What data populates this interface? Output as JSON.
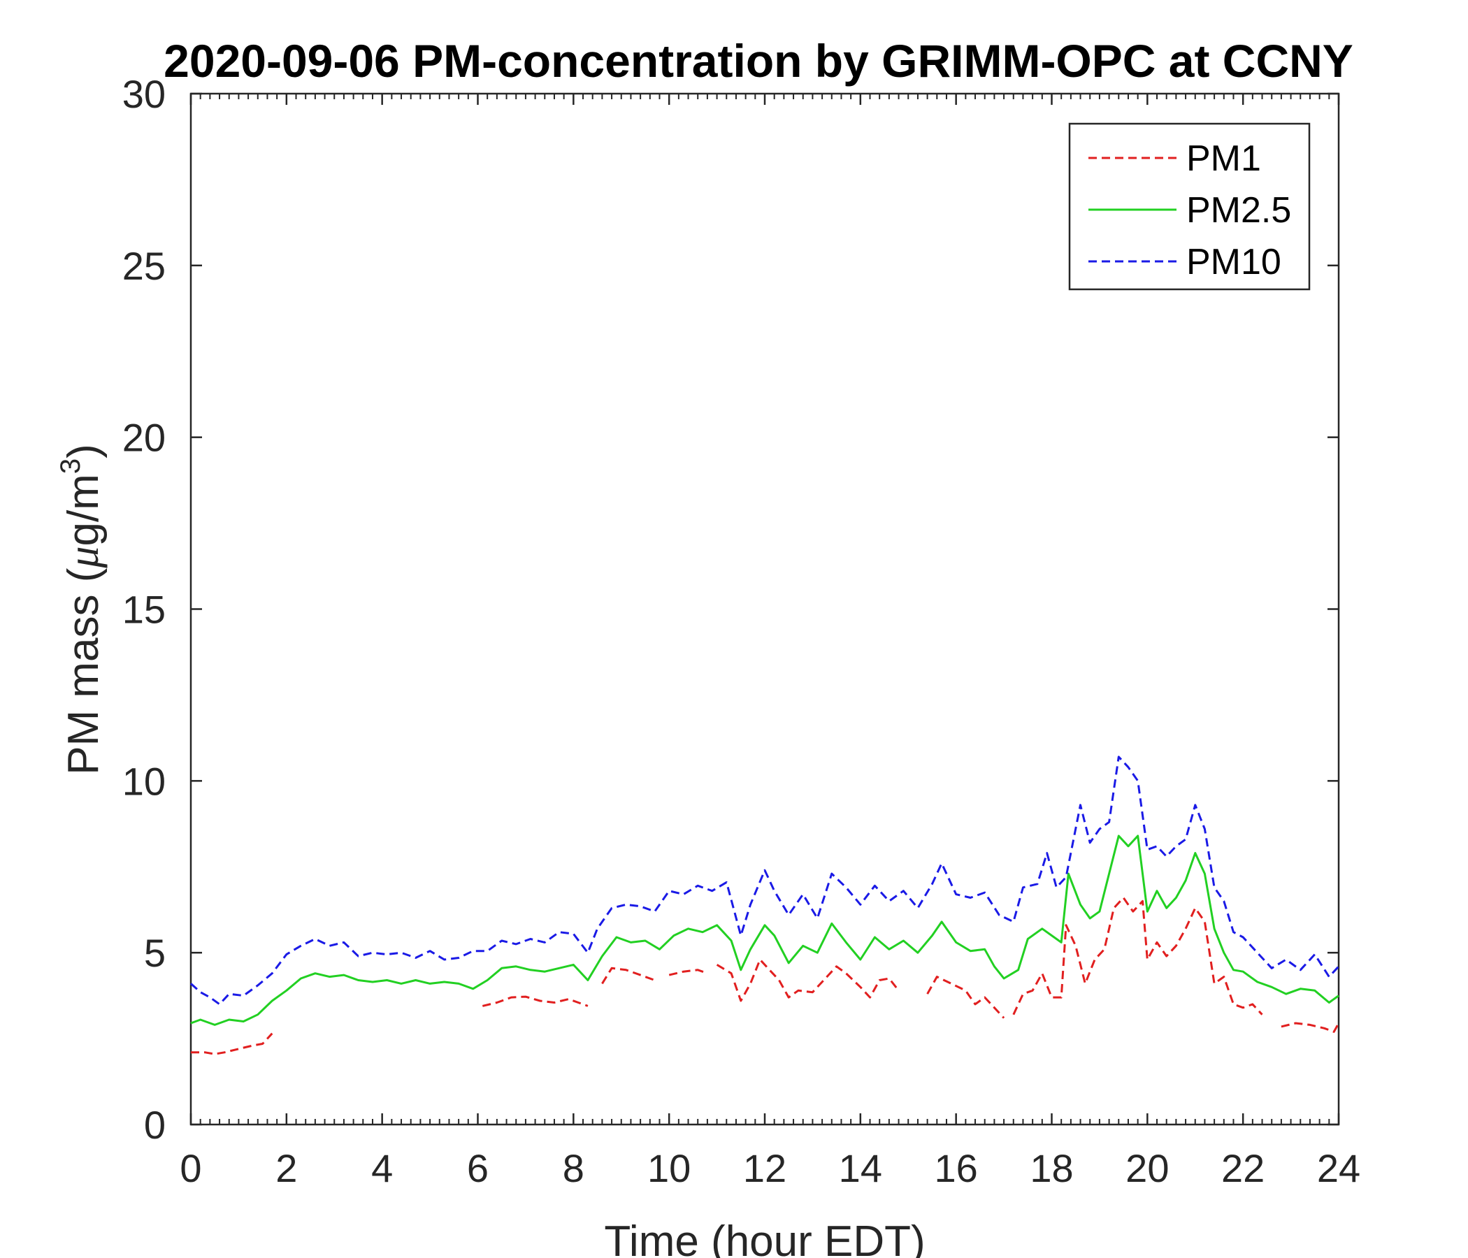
{
  "chart_data": {
    "type": "line",
    "title": "2020-09-06 PM-concentration by GRIMM-OPC at CCNY",
    "xlabel": "Time (hour EDT)",
    "ylabel_main": "PM mass (",
    "ylabel_mu": "μ",
    "ylabel_unit": "g/m",
    "ylabel_sup": "3",
    "ylabel_close": ")",
    "xlim": [
      0,
      24
    ],
    "ylim": [
      0,
      30
    ],
    "xticks": [
      0,
      2,
      4,
      6,
      8,
      10,
      12,
      14,
      16,
      18,
      20,
      22,
      24
    ],
    "xtick_labels": [
      "0",
      "2",
      "4",
      "6",
      "8",
      "10",
      "12",
      "14",
      "16",
      "18",
      "20",
      "22",
      "24"
    ],
    "yticks": [
      0,
      5,
      10,
      15,
      20,
      25,
      30
    ],
    "ytick_labels": [
      "0",
      "5",
      "10",
      "15",
      "20",
      "25",
      "30"
    ],
    "grid": false,
    "legend_position": "top-right",
    "series": [
      {
        "name": "PM1",
        "color": "#e11f1f",
        "style": "dashed",
        "segments": [
          [
            [
              0,
              2.1
            ],
            [
              0.3,
              2.1
            ],
            [
              0.5,
              2.05
            ],
            [
              0.7,
              2.1
            ],
            [
              1.0,
              2.2
            ],
            [
              1.3,
              2.3
            ],
            [
              1.5,
              2.35
            ],
            [
              1.7,
              2.65
            ]
          ],
          [
            [
              6.1,
              3.45
            ],
            [
              6.4,
              3.55
            ],
            [
              6.7,
              3.7
            ],
            [
              7.0,
              3.72
            ],
            [
              7.3,
              3.6
            ],
            [
              7.6,
              3.55
            ],
            [
              7.9,
              3.65
            ],
            [
              8.1,
              3.55
            ],
            [
              8.3,
              3.45
            ]
          ],
          [
            [
              8.6,
              4.1
            ],
            [
              8.8,
              4.55
            ],
            [
              9.1,
              4.5
            ],
            [
              9.4,
              4.35
            ],
            [
              9.7,
              4.2
            ]
          ],
          [
            [
              10.0,
              4.35
            ],
            [
              10.3,
              4.45
            ],
            [
              10.6,
              4.5
            ],
            [
              10.8,
              4.4
            ]
          ],
          [
            [
              11.0,
              4.65
            ],
            [
              11.3,
              4.4
            ],
            [
              11.5,
              3.6
            ],
            [
              11.7,
              4.1
            ],
            [
              11.9,
              4.8
            ],
            [
              12.1,
              4.5
            ],
            [
              12.3,
              4.2
            ],
            [
              12.5,
              3.7
            ],
            [
              12.7,
              3.9
            ],
            [
              13.0,
              3.85
            ],
            [
              13.3,
              4.3
            ],
            [
              13.5,
              4.6
            ],
            [
              13.7,
              4.4
            ],
            [
              14.0,
              4.0
            ],
            [
              14.2,
              3.7
            ],
            [
              14.4,
              4.2
            ],
            [
              14.6,
              4.25
            ],
            [
              14.8,
              3.9
            ]
          ],
          [
            [
              15.4,
              3.8
            ],
            [
              15.6,
              4.3
            ],
            [
              15.9,
              4.1
            ],
            [
              16.2,
              3.9
            ],
            [
              16.4,
              3.5
            ],
            [
              16.6,
              3.7
            ],
            [
              16.8,
              3.4
            ],
            [
              17.0,
              3.1
            ]
          ],
          [
            [
              17.2,
              3.2
            ],
            [
              17.4,
              3.8
            ],
            [
              17.6,
              3.9
            ],
            [
              17.8,
              4.4
            ],
            [
              18.0,
              3.7
            ],
            [
              18.2,
              3.7
            ],
            [
              18.3,
              5.8
            ],
            [
              18.5,
              5.2
            ],
            [
              18.7,
              4.1
            ],
            [
              18.9,
              4.8
            ],
            [
              19.1,
              5.1
            ],
            [
              19.3,
              6.3
            ],
            [
              19.5,
              6.6
            ],
            [
              19.7,
              6.2
            ],
            [
              19.9,
              6.5
            ],
            [
              20.0,
              4.8
            ],
            [
              20.2,
              5.3
            ],
            [
              20.4,
              4.9
            ],
            [
              20.6,
              5.2
            ],
            [
              20.8,
              5.7
            ],
            [
              21.0,
              6.3
            ],
            [
              21.2,
              5.9
            ],
            [
              21.4,
              4.1
            ],
            [
              21.6,
              4.3
            ],
            [
              21.8,
              3.5
            ],
            [
              22.0,
              3.4
            ],
            [
              22.2,
              3.5
            ],
            [
              22.4,
              3.2
            ]
          ],
          [
            [
              22.8,
              2.85
            ],
            [
              23.1,
              2.95
            ],
            [
              23.4,
              2.9
            ],
            [
              23.7,
              2.8
            ],
            [
              23.9,
              2.7
            ],
            [
              24.0,
              2.95
            ]
          ]
        ]
      },
      {
        "name": "PM2.5",
        "color": "#22d022",
        "style": "solid",
        "segments": [
          [
            [
              0,
              2.95
            ],
            [
              0.2,
              3.05
            ],
            [
              0.5,
              2.9
            ],
            [
              0.8,
              3.05
            ],
            [
              1.1,
              3.0
            ],
            [
              1.4,
              3.2
            ],
            [
              1.7,
              3.6
            ],
            [
              2.0,
              3.9
            ],
            [
              2.3,
              4.25
            ],
            [
              2.6,
              4.4
            ],
            [
              2.9,
              4.3
            ],
            [
              3.2,
              4.35
            ],
            [
              3.5,
              4.2
            ],
            [
              3.8,
              4.15
            ],
            [
              4.1,
              4.2
            ],
            [
              4.4,
              4.1
            ],
            [
              4.7,
              4.2
            ],
            [
              5.0,
              4.1
            ],
            [
              5.3,
              4.15
            ],
            [
              5.6,
              4.1
            ],
            [
              5.9,
              3.95
            ],
            [
              6.2,
              4.2
            ],
            [
              6.5,
              4.55
            ],
            [
              6.8,
              4.6
            ],
            [
              7.1,
              4.5
            ],
            [
              7.4,
              4.45
            ],
            [
              7.7,
              4.55
            ],
            [
              8.0,
              4.65
            ],
            [
              8.3,
              4.2
            ],
            [
              8.6,
              4.9
            ],
            [
              8.9,
              5.45
            ],
            [
              9.2,
              5.3
            ],
            [
              9.5,
              5.35
            ],
            [
              9.8,
              5.1
            ],
            [
              10.1,
              5.5
            ],
            [
              10.4,
              5.7
            ],
            [
              10.7,
              5.6
            ],
            [
              11.0,
              5.8
            ],
            [
              11.3,
              5.35
            ],
            [
              11.5,
              4.5
            ],
            [
              11.7,
              5.1
            ],
            [
              12.0,
              5.8
            ],
            [
              12.2,
              5.5
            ],
            [
              12.5,
              4.7
            ],
            [
              12.8,
              5.2
            ],
            [
              13.1,
              5.0
            ],
            [
              13.4,
              5.85
            ],
            [
              13.7,
              5.3
            ],
            [
              14.0,
              4.8
            ],
            [
              14.3,
              5.45
            ],
            [
              14.6,
              5.1
            ],
            [
              14.9,
              5.35
            ],
            [
              15.2,
              5.0
            ],
            [
              15.5,
              5.5
            ],
            [
              15.7,
              5.9
            ],
            [
              16.0,
              5.3
            ],
            [
              16.3,
              5.05
            ],
            [
              16.6,
              5.1
            ],
            [
              16.8,
              4.6
            ],
            [
              17.0,
              4.25
            ],
            [
              17.3,
              4.5
            ],
            [
              17.5,
              5.4
            ],
            [
              17.8,
              5.7
            ],
            [
              18.0,
              5.5
            ],
            [
              18.2,
              5.3
            ],
            [
              18.35,
              7.3
            ],
            [
              18.6,
              6.4
            ],
            [
              18.8,
              6.0
            ],
            [
              19.0,
              6.2
            ],
            [
              19.2,
              7.3
            ],
            [
              19.4,
              8.4
            ],
            [
              19.6,
              8.1
            ],
            [
              19.8,
              8.4
            ],
            [
              20.0,
              6.2
            ],
            [
              20.2,
              6.8
            ],
            [
              20.4,
              6.3
            ],
            [
              20.6,
              6.6
            ],
            [
              20.8,
              7.1
            ],
            [
              21.0,
              7.9
            ],
            [
              21.2,
              7.3
            ],
            [
              21.4,
              5.7
            ],
            [
              21.6,
              5.0
            ],
            [
              21.8,
              4.5
            ],
            [
              22.0,
              4.45
            ],
            [
              22.3,
              4.15
            ],
            [
              22.6,
              4.0
            ],
            [
              22.9,
              3.8
            ],
            [
              23.2,
              3.95
            ],
            [
              23.5,
              3.9
            ],
            [
              23.8,
              3.55
            ],
            [
              24.0,
              3.75
            ]
          ]
        ]
      },
      {
        "name": "PM10",
        "color": "#1a1ae6",
        "style": "dashed",
        "segments": [
          [
            [
              0,
              4.1
            ],
            [
              0.2,
              3.85
            ],
            [
              0.4,
              3.7
            ],
            [
              0.6,
              3.5
            ],
            [
              0.8,
              3.8
            ],
            [
              1.1,
              3.75
            ],
            [
              1.4,
              4.05
            ],
            [
              1.7,
              4.4
            ],
            [
              2.0,
              4.95
            ],
            [
              2.3,
              5.2
            ],
            [
              2.6,
              5.4
            ],
            [
              2.9,
              5.2
            ],
            [
              3.2,
              5.3
            ],
            [
              3.5,
              4.9
            ],
            [
              3.8,
              5.0
            ],
            [
              4.1,
              4.95
            ],
            [
              4.4,
              5.0
            ],
            [
              4.7,
              4.85
            ],
            [
              5.0,
              5.05
            ],
            [
              5.3,
              4.8
            ],
            [
              5.6,
              4.85
            ],
            [
              5.9,
              5.05
            ],
            [
              6.2,
              5.05
            ],
            [
              6.5,
              5.35
            ],
            [
              6.8,
              5.25
            ],
            [
              7.1,
              5.4
            ],
            [
              7.4,
              5.3
            ],
            [
              7.7,
              5.6
            ],
            [
              8.0,
              5.55
            ],
            [
              8.3,
              5.0
            ],
            [
              8.5,
              5.7
            ],
            [
              8.8,
              6.3
            ],
            [
              9.1,
              6.4
            ],
            [
              9.4,
              6.35
            ],
            [
              9.7,
              6.2
            ],
            [
              10.0,
              6.8
            ],
            [
              10.3,
              6.7
            ],
            [
              10.6,
              6.95
            ],
            [
              10.9,
              6.8
            ],
            [
              11.2,
              7.05
            ],
            [
              11.5,
              5.5
            ],
            [
              11.7,
              6.4
            ],
            [
              12.0,
              7.4
            ],
            [
              12.2,
              6.8
            ],
            [
              12.5,
              6.1
            ],
            [
              12.8,
              6.7
            ],
            [
              13.1,
              6.0
            ],
            [
              13.4,
              7.3
            ],
            [
              13.7,
              6.9
            ],
            [
              14.0,
              6.4
            ],
            [
              14.3,
              6.95
            ],
            [
              14.6,
              6.5
            ],
            [
              14.9,
              6.8
            ],
            [
              15.2,
              6.3
            ],
            [
              15.5,
              7.0
            ],
            [
              15.7,
              7.6
            ],
            [
              16.0,
              6.7
            ],
            [
              16.3,
              6.6
            ],
            [
              16.6,
              6.75
            ],
            [
              16.9,
              6.1
            ],
            [
              17.2,
              5.9
            ],
            [
              17.4,
              6.9
            ],
            [
              17.7,
              7.0
            ],
            [
              17.9,
              7.9
            ],
            [
              18.1,
              6.9
            ],
            [
              18.3,
              7.2
            ],
            [
              18.6,
              9.3
            ],
            [
              18.8,
              8.2
            ],
            [
              19.0,
              8.6
            ],
            [
              19.2,
              8.8
            ],
            [
              19.4,
              10.7
            ],
            [
              19.6,
              10.4
            ],
            [
              19.8,
              10.0
            ],
            [
              20.0,
              8.0
            ],
            [
              20.2,
              8.1
            ],
            [
              20.4,
              7.8
            ],
            [
              20.6,
              8.1
            ],
            [
              20.8,
              8.3
            ],
            [
              21.0,
              9.3
            ],
            [
              21.2,
              8.6
            ],
            [
              21.4,
              6.9
            ],
            [
              21.6,
              6.5
            ],
            [
              21.8,
              5.6
            ],
            [
              22.0,
              5.45
            ],
            [
              22.3,
              5.0
            ],
            [
              22.6,
              4.55
            ],
            [
              22.9,
              4.8
            ],
            [
              23.2,
              4.5
            ],
            [
              23.5,
              4.95
            ],
            [
              23.8,
              4.3
            ],
            [
              24.0,
              4.6
            ]
          ]
        ]
      }
    ]
  }
}
